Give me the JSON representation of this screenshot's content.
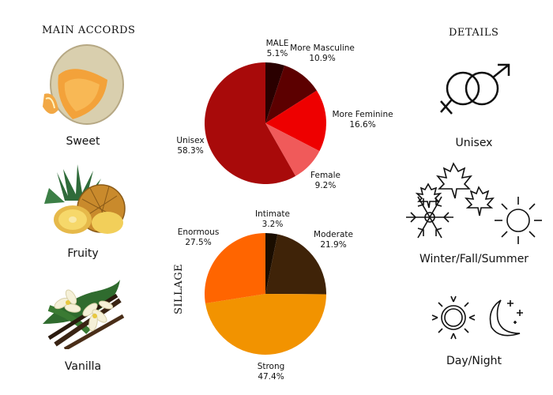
{
  "accords": {
    "heading": "MAIN ACCORDS",
    "items": [
      {
        "label": "Sweet",
        "icon": "cantaloupe-melon-image"
      },
      {
        "label": "Fruity",
        "icon": "pineapple-image"
      },
      {
        "label": "Vanilla",
        "icon": "vanilla-flower-image"
      }
    ]
  },
  "details": {
    "heading": "DETAILS",
    "items": [
      {
        "label": "Unisex",
        "icon": "gender-symbols-icon"
      },
      {
        "label": "Winter/Fall/Summer",
        "icon": "season-icons"
      },
      {
        "label": "Day/Night",
        "icon": "sun-moon-icon"
      }
    ]
  },
  "sillage_label": "SILLAGE",
  "chart_data": [
    {
      "type": "pie",
      "slices": [
        {
          "name": "MALE",
          "value": 5.1,
          "label": "5.1%",
          "color": "#2a0000"
        },
        {
          "name": "More Masculine",
          "value": 10.9,
          "label": "10.9%",
          "color": "#5c0000"
        },
        {
          "name": "More Feminine",
          "value": 16.6,
          "label": "16.6%",
          "color": "#ee0000"
        },
        {
          "name": "Female",
          "value": 9.2,
          "label": "9.2%",
          "color": "#f05a5a"
        },
        {
          "name": "Unisex",
          "value": 58.3,
          "label": "58.3%",
          "color": "#a80a0a"
        }
      ]
    },
    {
      "type": "pie",
      "slices": [
        {
          "name": "Intimate",
          "value": 3.2,
          "label": "3.2%",
          "color": "#1a0d00"
        },
        {
          "name": "Moderate",
          "value": 21.9,
          "label": "21.9%",
          "color": "#3f2308"
        },
        {
          "name": "Strong",
          "value": 47.4,
          "label": "47.4%",
          "color": "#f29300"
        },
        {
          "name": "Enormous",
          "value": 27.5,
          "label": "27.5%",
          "color": "#ff6500"
        }
      ]
    }
  ]
}
